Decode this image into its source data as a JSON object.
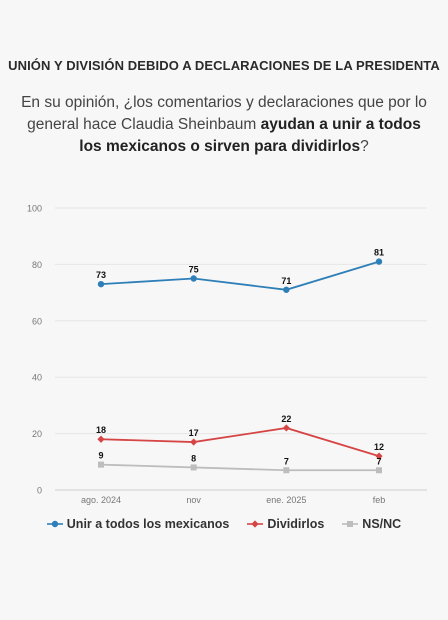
{
  "header": {
    "title": "UNIÓN Y DIVISIÓN DEBIDO A DECLARACIONES DE LA PRESIDENTA",
    "subtitle_prefix": "En su opinión, ¿los comentarios y declaraciones que por lo general hace Claudia Sheinbaum ",
    "subtitle_bold": "ayudan a unir a todos los mexicanos o sirven para dividirlos",
    "subtitle_suffix": "?"
  },
  "chart_data": {
    "type": "line",
    "categories": [
      "ago. 2024",
      "nov",
      "ene. 2025",
      "feb"
    ],
    "ylim": [
      0,
      100
    ],
    "yticks": [
      0,
      20,
      40,
      60,
      80,
      100
    ],
    "grid": true,
    "legend_position": "bottom",
    "series": [
      {
        "name": "Unir a todos los mexicanos",
        "values": [
          73,
          75,
          71,
          81
        ],
        "color": "#2e7fb8",
        "marker": "circle"
      },
      {
        "name": "Dividirlos",
        "values": [
          18,
          17,
          22,
          12
        ],
        "color": "#d64545",
        "marker": "diamond"
      },
      {
        "name": "NS/NC",
        "values": [
          9,
          8,
          7,
          7
        ],
        "color": "#bdbdbd",
        "marker": "square"
      }
    ]
  }
}
